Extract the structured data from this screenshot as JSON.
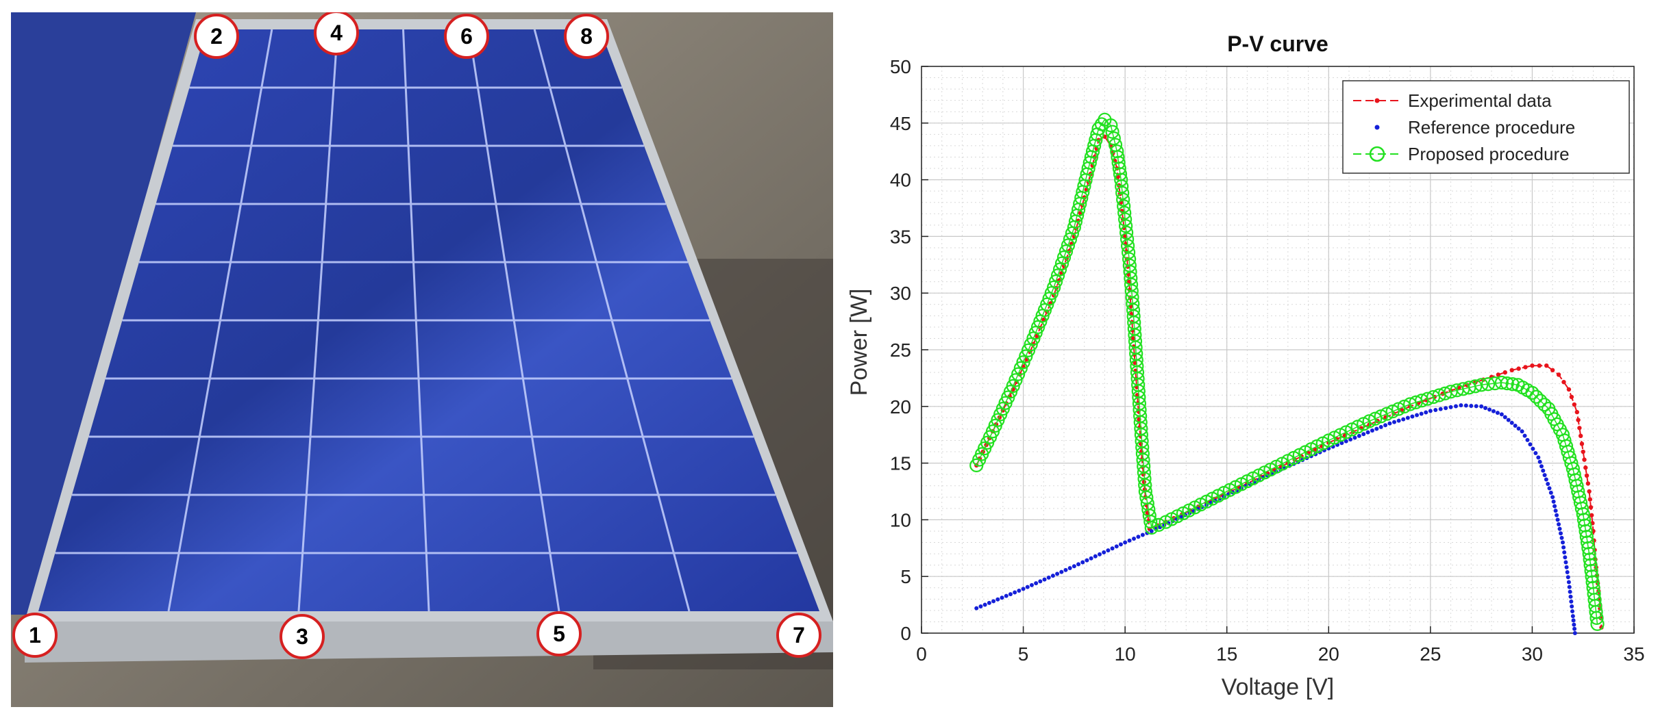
{
  "photo": {
    "markers": [
      {
        "label": "1"
      },
      {
        "label": "2"
      },
      {
        "label": "3"
      },
      {
        "label": "4"
      },
      {
        "label": "5"
      },
      {
        "label": "6"
      },
      {
        "label": "7"
      },
      {
        "label": "8"
      }
    ],
    "colors": {
      "panel": "#2a3f9a",
      "frame": "#c9cdd2",
      "ground": "#8a8377",
      "marker_ring": "#d62020"
    }
  },
  "chart_data": {
    "type": "line",
    "title": "P-V curve",
    "xlabel": "Voltage [V]",
    "ylabel": "Power [W]",
    "xlim": [
      0,
      35
    ],
    "ylim": [
      0,
      50
    ],
    "xticks": [
      0,
      5,
      10,
      15,
      20,
      25,
      30,
      35
    ],
    "yticks": [
      0,
      5,
      10,
      15,
      20,
      25,
      30,
      35,
      40,
      45,
      50
    ],
    "grid": true,
    "minor_grid": true,
    "legend_position": "top-right",
    "series": [
      {
        "name": "Experimental data",
        "color": "#e8141c",
        "style": "dash-dot-marker",
        "points": [
          [
            2.7,
            14.8
          ],
          [
            3.5,
            17.8
          ],
          [
            4.5,
            21.5
          ],
          [
            5.5,
            25.5
          ],
          [
            6.5,
            29.8
          ],
          [
            7.5,
            35.0
          ],
          [
            8.3,
            40.5
          ],
          [
            8.7,
            43.5
          ],
          [
            9.0,
            43.8
          ],
          [
            9.3,
            43.0
          ],
          [
            9.6,
            41.0
          ],
          [
            9.8,
            38.0
          ],
          [
            10.0,
            35.0
          ],
          [
            10.2,
            31.0
          ],
          [
            10.4,
            26.0
          ],
          [
            10.6,
            21.0
          ],
          [
            10.8,
            16.0
          ],
          [
            11.0,
            12.0
          ],
          [
            11.2,
            9.2
          ],
          [
            12,
            9.8
          ],
          [
            14,
            11.5
          ],
          [
            16,
            13.2
          ],
          [
            18,
            15.0
          ],
          [
            20,
            16.8
          ],
          [
            22,
            18.4
          ],
          [
            24,
            20.0
          ],
          [
            26,
            21.4
          ],
          [
            28,
            22.6
          ],
          [
            29,
            23.2
          ],
          [
            30,
            23.6
          ],
          [
            30.7,
            23.6
          ],
          [
            31.3,
            22.8
          ],
          [
            31.8,
            21.5
          ],
          [
            32.2,
            19.5
          ],
          [
            32.5,
            16.0
          ],
          [
            32.8,
            12.5
          ],
          [
            33.0,
            9.0
          ],
          [
            33.1,
            6.5
          ],
          [
            33.3,
            3.0
          ],
          [
            33.4,
            0.5
          ]
        ]
      },
      {
        "name": "Reference procedure",
        "color": "#1520d8",
        "style": "dots",
        "points": [
          [
            2.7,
            2.2
          ],
          [
            5,
            3.9
          ],
          [
            7.5,
            5.9
          ],
          [
            10,
            8.0
          ],
          [
            11.3,
            9.0
          ],
          [
            14,
            11.3
          ],
          [
            17,
            13.9
          ],
          [
            20,
            16.3
          ],
          [
            23,
            18.5
          ],
          [
            25,
            19.6
          ],
          [
            26.5,
            20.1
          ],
          [
            27.5,
            20.0
          ],
          [
            28.5,
            19.3
          ],
          [
            29.5,
            17.8
          ],
          [
            30.3,
            15.5
          ],
          [
            31.0,
            12.0
          ],
          [
            31.5,
            8.0
          ],
          [
            31.8,
            4.5
          ],
          [
            32.0,
            1.5
          ],
          [
            32.1,
            0.0
          ]
        ]
      },
      {
        "name": "Proposed procedure",
        "color": "#22e020",
        "style": "circles",
        "points": [
          [
            2.7,
            14.8
          ],
          [
            3.5,
            17.8
          ],
          [
            4.5,
            21.8
          ],
          [
            5.5,
            26.0
          ],
          [
            6.5,
            30.5
          ],
          [
            7.5,
            35.8
          ],
          [
            8.2,
            41.0
          ],
          [
            8.7,
            44.5
          ],
          [
            9.0,
            45.3
          ],
          [
            9.3,
            44.8
          ],
          [
            9.6,
            42.5
          ],
          [
            9.8,
            40.0
          ],
          [
            10.0,
            36.5
          ],
          [
            10.2,
            33.0
          ],
          [
            10.4,
            28.5
          ],
          [
            10.6,
            23.0
          ],
          [
            10.8,
            17.5
          ],
          [
            11.0,
            12.5
          ],
          [
            11.3,
            9.3
          ],
          [
            12,
            9.8
          ],
          [
            14,
            11.6
          ],
          [
            16,
            13.4
          ],
          [
            18,
            15.2
          ],
          [
            20,
            17.0
          ],
          [
            22,
            18.7
          ],
          [
            24,
            20.2
          ],
          [
            26,
            21.3
          ],
          [
            27.5,
            21.9
          ],
          [
            28.5,
            22.1
          ],
          [
            29.3,
            21.9
          ],
          [
            30.0,
            21.2
          ],
          [
            30.8,
            19.8
          ],
          [
            31.5,
            17.5
          ],
          [
            32.0,
            14.5
          ],
          [
            32.5,
            10.5
          ],
          [
            32.8,
            7.0
          ],
          [
            33.0,
            4.0
          ],
          [
            33.2,
            0.8
          ]
        ]
      }
    ]
  }
}
